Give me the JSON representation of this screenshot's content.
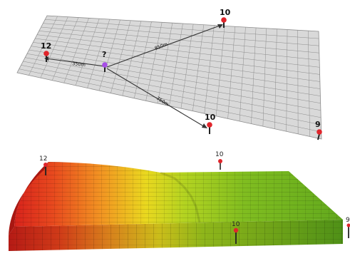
{
  "top_panel": {
    "pins": [
      {
        "id": "top-right",
        "label": "10",
        "color": "#e0252b"
      },
      {
        "id": "left",
        "label": "12",
        "color": "#e0252b"
      },
      {
        "id": "center",
        "label": "?",
        "color": "#a64ee6"
      },
      {
        "id": "bottom-mid",
        "label": "10",
        "color": "#e0252b"
      },
      {
        "id": "bottom-right",
        "label": "9",
        "color": "#e0252b"
      }
    ],
    "distances": [
      {
        "id": "to-left",
        "label": "350m"
      },
      {
        "id": "to-top-right",
        "label": "850m"
      },
      {
        "id": "to-bottom-mid",
        "label": "750m"
      }
    ],
    "grid_color": "#d9d9d9",
    "line_color": "#8c8c8c"
  },
  "bottom_panel": {
    "pins": [
      {
        "id": "left",
        "label": "12",
        "color": "#e0252b"
      },
      {
        "id": "top-mid",
        "label": "10",
        "color": "#e0252b"
      },
      {
        "id": "front-mid",
        "label": "10",
        "color": "#e0252b"
      },
      {
        "id": "right-edge",
        "label": "9",
        "color": "#e0252b"
      }
    ],
    "gradient_colors": [
      "#cc1f1a",
      "#e8531d",
      "#f09a22",
      "#e8dc1f",
      "#a7cf1f",
      "#79b91f",
      "#5fa61c"
    ]
  }
}
